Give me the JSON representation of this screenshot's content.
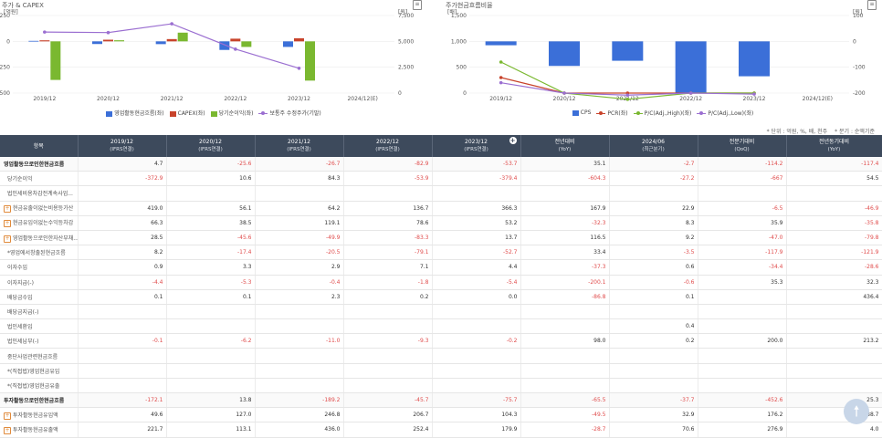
{
  "chart_data": [
    {
      "type": "bar",
      "title": "주가 & CAPEX",
      "left_unit": "[억원]",
      "right_unit": "[원]",
      "categories": [
        "2019/12",
        "2020/12",
        "2021/12",
        "2022/12",
        "2023/12",
        "2024/12(E)"
      ],
      "left_ticks": [
        "250",
        "0",
        "-250",
        "-500"
      ],
      "right_ticks": [
        "7,500",
        "5,000",
        "2,500",
        "0"
      ],
      "ylim": [
        -500,
        250
      ],
      "y2lim": [
        0,
        7500
      ],
      "series": [
        {
          "name": "영업활동현금흐름(좌)",
          "kind": "bar",
          "color": "#3b6fd8",
          "values": [
            4.7,
            -25.6,
            -26.7,
            -82.9,
            -53.7,
            null
          ]
        },
        {
          "name": "CAPEX(좌)",
          "kind": "bar",
          "color": "#c8432b",
          "values": [
            10,
            16,
            22,
            26,
            30,
            null
          ]
        },
        {
          "name": "당기순이익(좌)",
          "kind": "bar",
          "color": "#7ab830",
          "values": [
            -372.9,
            10.6,
            84.3,
            -53.9,
            -379.4,
            null
          ]
        },
        {
          "name": "보통주 수정주가(기말)",
          "kind": "line",
          "axis": "right",
          "color": "#9b6fd1",
          "values": [
            5900,
            5850,
            6700,
            4250,
            2400,
            null
          ]
        }
      ]
    },
    {
      "type": "bar",
      "title": "주가현금흐름비율",
      "left_unit": "[배]",
      "right_unit": "[원]",
      "categories": [
        "2019/12",
        "2020/12",
        "2021/12",
        "2022/12",
        "2023/12",
        "2024/12(E)"
      ],
      "left_ticks": [
        "1,500",
        "1,000",
        "500",
        "0"
      ],
      "right_ticks": [
        "100",
        "0",
        "-100",
        "-200"
      ],
      "ylim": [
        0,
        1500
      ],
      "y2lim": [
        -200,
        100
      ],
      "series": [
        {
          "name": "CPS",
          "kind": "bar",
          "axis": "right",
          "color": "#3b6fd8",
          "values": [
            -15,
            -95,
            -75,
            -200,
            -135,
            null
          ]
        },
        {
          "name": "PCR(좌)",
          "kind": "line",
          "color": "#c8432b",
          "values": [
            300,
            0,
            0,
            0,
            0,
            null
          ]
        },
        {
          "name": "P/C(Adj.,High)(좌)",
          "kind": "line",
          "color": "#7ab830",
          "values": [
            600,
            0,
            -120,
            0,
            0,
            null
          ]
        },
        {
          "name": "P/C(Adj.,Low)(좌)",
          "kind": "line",
          "color": "#9b6fd1",
          "values": [
            200,
            0,
            -40,
            0,
            -20,
            null
          ]
        }
      ]
    }
  ],
  "units_note": [
    "* 단위 : 억원, %, 배, 천주",
    "* 분기 : 순액기준"
  ],
  "table": {
    "header_label": "항목",
    "columns": [
      {
        "main": "2019/12",
        "sub": "(IFRS연결)"
      },
      {
        "main": "2020/12",
        "sub": "(IFRS연결)"
      },
      {
        "main": "2021/12",
        "sub": "(IFRS연결)"
      },
      {
        "main": "2022/12",
        "sub": "(IFRS연결)"
      },
      {
        "main": "2023/12",
        "sub": "(IFRS연결)"
      },
      {
        "main": "전년대비",
        "sub": "(YoY)"
      },
      {
        "main": "2024/06",
        "sub": "(최근분기)"
      },
      {
        "main": "전분기대비",
        "sub": "(QoQ)"
      },
      {
        "main": "전년동기대비",
        "sub": "(YoY)"
      }
    ],
    "rows": [
      {
        "label": "영업활동으로인한현금흐름",
        "bold": true,
        "exp": false,
        "ind": false,
        "values": [
          "4.7",
          "-25.6",
          "-26.7",
          "-82.9",
          "-53.7",
          "35.1",
          "-2.7",
          "-114.2",
          "-117.4"
        ]
      },
      {
        "label": "당기순이익",
        "bold": false,
        "exp": false,
        "ind": true,
        "values": [
          "-372.9",
          "10.6",
          "84.3",
          "-53.9",
          "-379.4",
          "-604.3",
          "-27.2",
          "-667",
          "54.5"
        ]
      },
      {
        "label": "법인세비용차감전계속사업...",
        "bold": false,
        "exp": false,
        "ind": true,
        "values": [
          "",
          "",
          "",
          "",
          "",
          "",
          "",
          "",
          ""
        ]
      },
      {
        "label": "현금유출이없는비용등가산",
        "bold": false,
        "exp": true,
        "ind": false,
        "values": [
          "419.0",
          "56.1",
          "64.2",
          "136.7",
          "366.3",
          "167.9",
          "22.9",
          "-6.5",
          "-46.9"
        ]
      },
      {
        "label": "현금유입이없는수익등차감",
        "bold": false,
        "exp": true,
        "ind": false,
        "values": [
          "66.3",
          "38.5",
          "119.1",
          "78.6",
          "53.2",
          "-32.3",
          "8.3",
          "35.9",
          "-35.8"
        ]
      },
      {
        "label": "영업활동으로인한자산부채...",
        "bold": false,
        "exp": true,
        "ind": false,
        "values": [
          "28.5",
          "-45.6",
          "-49.9",
          "-83.3",
          "13.7",
          "116.5",
          "9.2",
          "-47.0",
          "-79.8"
        ]
      },
      {
        "label": "*영업에서창출된현금흐름",
        "bold": false,
        "exp": false,
        "ind": true,
        "values": [
          "8.2",
          "-17.4",
          "-20.5",
          "-79.1",
          "-52.7",
          "33.4",
          "-3.5",
          "-117.9",
          "-121.9"
        ]
      },
      {
        "label": "이자수입",
        "bold": false,
        "exp": false,
        "ind": true,
        "values": [
          "0.9",
          "3.3",
          "2.9",
          "7.1",
          "4.4",
          "-37.3",
          "0.6",
          "-34.4",
          "-28.6"
        ]
      },
      {
        "label": "이자지급(-)",
        "bold": false,
        "exp": false,
        "ind": true,
        "values": [
          "-4.4",
          "-5.3",
          "-0.4",
          "-1.8",
          "-5.4",
          "-200.1",
          "-0.6",
          "35.3",
          "32.3"
        ]
      },
      {
        "label": "배당금수입",
        "bold": false,
        "exp": false,
        "ind": true,
        "values": [
          "0.1",
          "0.1",
          "2.3",
          "0.2",
          "0.0",
          "-86.8",
          "0.1",
          "",
          "436.4"
        ]
      },
      {
        "label": "배당금지급(-)",
        "bold": false,
        "exp": false,
        "ind": true,
        "values": [
          "",
          "",
          "",
          "",
          "",
          "",
          "",
          "",
          ""
        ]
      },
      {
        "label": "법인세환입",
        "bold": false,
        "exp": false,
        "ind": true,
        "values": [
          "",
          "",
          "",
          "",
          "",
          "",
          "0.4",
          "",
          ""
        ]
      },
      {
        "label": "법인세납부(-)",
        "bold": false,
        "exp": false,
        "ind": true,
        "values": [
          "-0.1",
          "-6.2",
          "-11.0",
          "-9.3",
          "-0.2",
          "98.0",
          "0.2",
          "200.0",
          "213.2"
        ]
      },
      {
        "label": "중단사업관련현금흐름",
        "bold": false,
        "exp": false,
        "ind": true,
        "values": [
          "",
          "",
          "",
          "",
          "",
          "",
          "",
          "",
          ""
        ]
      },
      {
        "label": "*(직접법)영업현금유입",
        "bold": false,
        "exp": false,
        "ind": true,
        "values": [
          "",
          "",
          "",
          "",
          "",
          "",
          "",
          "",
          ""
        ]
      },
      {
        "label": "*(직접법)영업현금유출",
        "bold": false,
        "exp": false,
        "ind": true,
        "values": [
          "",
          "",
          "",
          "",
          "",
          "",
          "",
          "",
          ""
        ]
      },
      {
        "label": "투자활동으로인한현금흐름",
        "bold": true,
        "exp": false,
        "ind": false,
        "values": [
          "-172.1",
          "13.8",
          "-189.2",
          "-45.7",
          "-75.7",
          "-65.5",
          "-37.7",
          "-452.6",
          "25.3"
        ]
      },
      {
        "label": "투자활동현금유입액",
        "bold": false,
        "exp": true,
        "ind": false,
        "values": [
          "49.6",
          "127.0",
          "246.8",
          "206.7",
          "104.3",
          "-49.5",
          "32.9",
          "176.2",
          "88.7"
        ]
      },
      {
        "label": "투자활동현금유출액",
        "bold": false,
        "exp": true,
        "ind": false,
        "values": [
          "221.7",
          "113.1",
          "436.0",
          "252.4",
          "179.9",
          "-28.7",
          "70.6",
          "276.9",
          "4.0"
        ]
      }
    ]
  },
  "scroll_top_icon": "arrow-up-icon"
}
